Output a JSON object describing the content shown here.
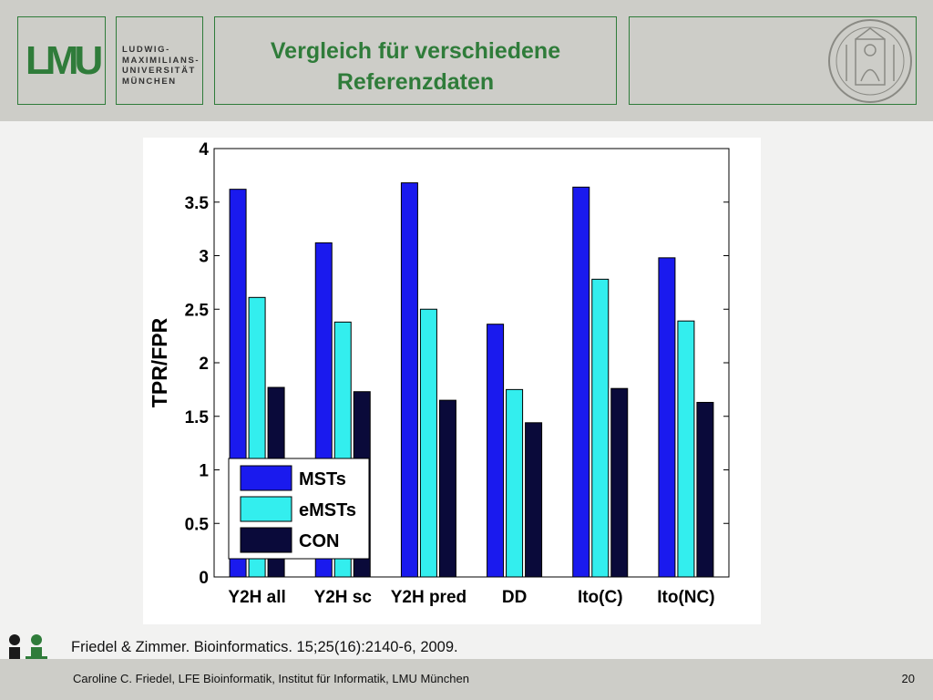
{
  "header": {
    "logo_mark": "LMU",
    "university_name": "LUDWIG-\nMAXIMILIANS-\nUNIVERSITÄT\nMÜNCHEN",
    "title_line1": "Vergleich für verschiedene",
    "title_line2": "Referenzdaten"
  },
  "chart_data": {
    "type": "bar",
    "ylabel": "TPR/FPR",
    "xlabel": "",
    "ylim": [
      0,
      4
    ],
    "yticks": [
      0,
      0.5,
      1,
      1.5,
      2,
      2.5,
      3,
      3.5,
      4
    ],
    "categories": [
      "Y2H all",
      "Y2H sc",
      "Y2H pred",
      "DD",
      "Ito(C)",
      "Ito(NC)"
    ],
    "series": [
      {
        "name": "MSTs",
        "color": "#1a1aee",
        "values": [
          3.62,
          3.12,
          3.68,
          2.36,
          3.64,
          2.98
        ]
      },
      {
        "name": "eMSTs",
        "color": "#33eeee",
        "values": [
          2.61,
          2.38,
          2.5,
          1.75,
          2.78,
          2.39
        ]
      },
      {
        "name": "CON",
        "color": "#0a0a3a",
        "values": [
          1.77,
          1.73,
          1.65,
          1.44,
          1.76,
          1.63
        ]
      }
    ],
    "legend_position": "bottom-left",
    "grid": false
  },
  "reference": "Friedel & Zimmer. Bioinformatics. 15;25(16):2140-6, 2009.",
  "footer": {
    "author_line": "Caroline C. Friedel, LFE Bioinformatik, Institut für Informatik, LMU München",
    "page_number": "20"
  }
}
